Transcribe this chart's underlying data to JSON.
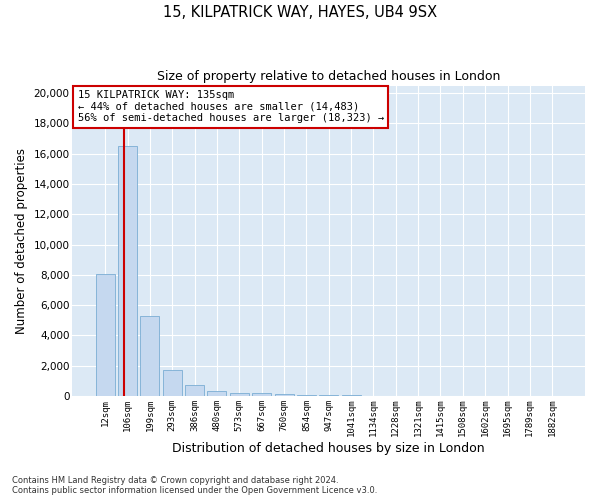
{
  "title": "15, KILPATRICK WAY, HAYES, UB4 9SX",
  "subtitle": "Size of property relative to detached houses in London",
  "xlabel": "Distribution of detached houses by size in London",
  "ylabel": "Number of detached properties",
  "bin_labels": [
    "12sqm",
    "106sqm",
    "199sqm",
    "293sqm",
    "386sqm",
    "480sqm",
    "573sqm",
    "667sqm",
    "760sqm",
    "854sqm",
    "947sqm",
    "1041sqm",
    "1134sqm",
    "1228sqm",
    "1321sqm",
    "1415sqm",
    "1508sqm",
    "1602sqm",
    "1695sqm",
    "1789sqm",
    "1882sqm"
  ],
  "bar_values": [
    8050,
    16500,
    5300,
    1750,
    700,
    350,
    200,
    175,
    150,
    100,
    60,
    40,
    30,
    20,
    15,
    10,
    8,
    6,
    5,
    4,
    3
  ],
  "bar_color": "#c5d8ef",
  "bar_edgecolor": "#7aadd4",
  "bg_color": "#dce9f5",
  "grid_color": "#ffffff",
  "red_line_x": 0.685,
  "red_line_color": "#cc0000",
  "annotation_title": "15 KILPATRICK WAY: 135sqm",
  "annotation_line1": "← 44% of detached houses are smaller (14,483)",
  "annotation_line2": "56% of semi-detached houses are larger (18,323) →",
  "annotation_box_color": "#ffffff",
  "annotation_box_edgecolor": "#cc0000",
  "ylim": [
    0,
    20500
  ],
  "yticks": [
    0,
    2000,
    4000,
    6000,
    8000,
    10000,
    12000,
    14000,
    16000,
    18000,
    20000
  ],
  "footnote1": "Contains HM Land Registry data © Crown copyright and database right 2024.",
  "footnote2": "Contains public sector information licensed under the Open Government Licence v3.0."
}
